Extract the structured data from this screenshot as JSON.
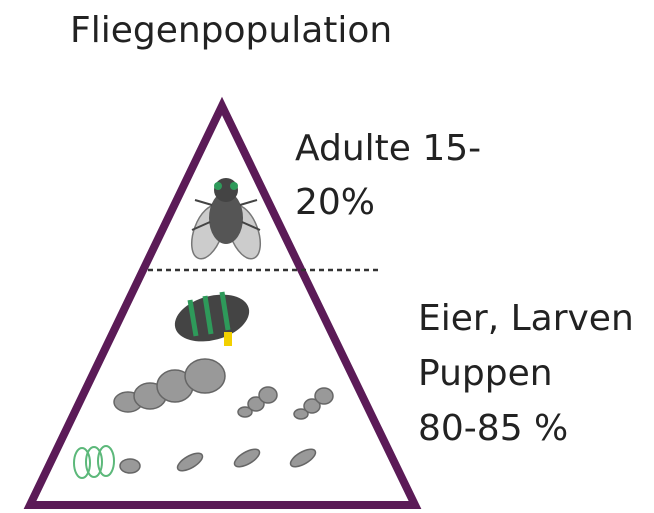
{
  "title": "Fliegenpopulation",
  "sections": [
    {
      "lines": [
        "Adulte 15-",
        "20%"
      ]
    },
    {
      "lines": [
        "Eier, Larven",
        "Puppen",
        "80-85 %"
      ]
    }
  ]
}
